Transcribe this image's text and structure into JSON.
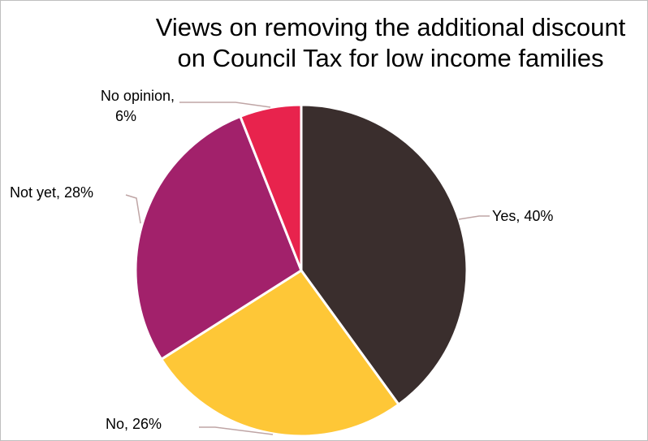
{
  "chart_data": {
    "type": "pie",
    "title_lines": [
      "Views on removing the additional discount",
      "on Council Tax for low income families"
    ],
    "categories": [
      "Yes",
      "No",
      "Not yet",
      "No opinion"
    ],
    "values": [
      40,
      26,
      28,
      6
    ],
    "colors": [
      "#3a2e2d",
      "#fec737",
      "#a2216b",
      "#e8234d"
    ],
    "data_labels": [
      [
        "Yes, 40%"
      ],
      [
        "No, 26%"
      ],
      [
        "Not yet, 28%"
      ],
      [
        "No opinion,",
        "6%"
      ]
    ],
    "leader_line_color": "#bfa5a5",
    "start_angle_deg": 0,
    "direction": "clockwise"
  }
}
